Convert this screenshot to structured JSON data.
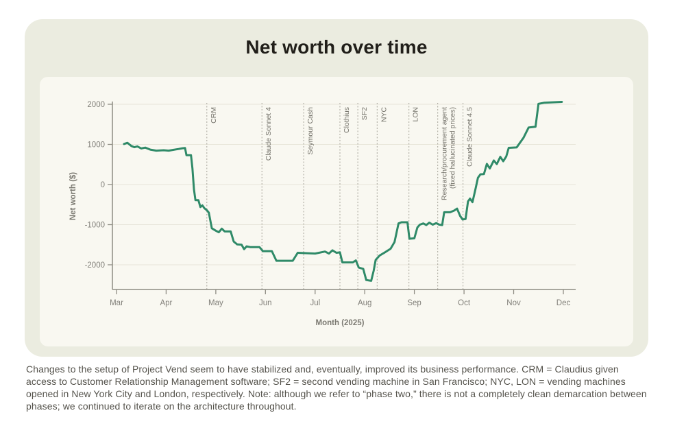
{
  "title": "Net worth over time",
  "caption": "Changes to the setup of Project Vend seem to have stabilized and, eventually, improved its business performance. CRM = Claudius given access to Customer Relationship Management software; SF2 = second vending machine in San Francisco; NYC, LON = vending machines opened in New York City and London, respectively. Note: although we refer to “phase two,” there is not a completely clean demarcation between phases; we continued to iterate on the architecture throughout.",
  "colors": {
    "page_bg": "#ffffff",
    "figure_card_bg": "#ebece0",
    "chart_card_bg": "#f9f8f1",
    "title_text": "#211f1a",
    "line": "#2f8a68",
    "grid": "#e7e5d9",
    "spine": "#8e8c83",
    "tick_text": "#82807a",
    "axis_title_text": "#7b7971",
    "annotation_line": "#a6a399",
    "annotation_text": "#75736b",
    "caption_text": "#55534c"
  },
  "chart_data": {
    "type": "line",
    "title": "Net worth over time",
    "xlabel": "Month (2025)",
    "ylabel": "Net worth ($)",
    "x_unit": "months_since_march_decimal",
    "x_tick_labels": [
      "Mar",
      "Apr",
      "May",
      "Jun",
      "Jul",
      "Aug",
      "Sep",
      "Oct",
      "Nov",
      "Dec"
    ],
    "yticks": [
      2000,
      1000,
      0,
      -1000,
      -2000
    ],
    "ylim": [
      -2615,
      2240
    ],
    "grid": "horizontal",
    "legend": "none",
    "series": [
      {
        "name": "Net worth ($)",
        "color": "#2f8a68",
        "points": [
          [
            0.15,
            1010
          ],
          [
            0.22,
            1040
          ],
          [
            0.3,
            960
          ],
          [
            0.36,
            930
          ],
          [
            0.42,
            950
          ],
          [
            0.5,
            900
          ],
          [
            0.58,
            920
          ],
          [
            0.68,
            870
          ],
          [
            0.8,
            845
          ],
          [
            0.95,
            855
          ],
          [
            1.05,
            845
          ],
          [
            1.15,
            865
          ],
          [
            1.25,
            885
          ],
          [
            1.33,
            905
          ],
          [
            1.38,
            910
          ],
          [
            1.41,
            730
          ],
          [
            1.5,
            730
          ],
          [
            1.53,
            400
          ],
          [
            1.56,
            -120
          ],
          [
            1.59,
            -390
          ],
          [
            1.65,
            -390
          ],
          [
            1.69,
            -560
          ],
          [
            1.73,
            -520
          ],
          [
            1.77,
            -590
          ],
          [
            1.82,
            -640
          ],
          [
            1.86,
            -700
          ],
          [
            1.92,
            -1090
          ],
          [
            2.0,
            -1150
          ],
          [
            2.06,
            -1190
          ],
          [
            2.12,
            -1100
          ],
          [
            2.18,
            -1170
          ],
          [
            2.3,
            -1170
          ],
          [
            2.36,
            -1420
          ],
          [
            2.43,
            -1490
          ],
          [
            2.52,
            -1500
          ],
          [
            2.57,
            -1610
          ],
          [
            2.62,
            -1540
          ],
          [
            2.7,
            -1560
          ],
          [
            2.88,
            -1560
          ],
          [
            2.95,
            -1660
          ],
          [
            3.13,
            -1660
          ],
          [
            3.22,
            -1900
          ],
          [
            3.55,
            -1900
          ],
          [
            3.65,
            -1700
          ],
          [
            3.8,
            -1710
          ],
          [
            4.0,
            -1720
          ],
          [
            4.2,
            -1670
          ],
          [
            4.28,
            -1720
          ],
          [
            4.35,
            -1640
          ],
          [
            4.43,
            -1700
          ],
          [
            4.5,
            -1690
          ],
          [
            4.55,
            -1940
          ],
          [
            4.76,
            -1940
          ],
          [
            4.82,
            -1890
          ],
          [
            4.88,
            -2070
          ],
          [
            4.97,
            -2100
          ],
          [
            5.03,
            -2380
          ],
          [
            5.13,
            -2400
          ],
          [
            5.18,
            -2150
          ],
          [
            5.22,
            -1880
          ],
          [
            5.3,
            -1770
          ],
          [
            5.42,
            -1680
          ],
          [
            5.52,
            -1600
          ],
          [
            5.6,
            -1430
          ],
          [
            5.68,
            -970
          ],
          [
            5.74,
            -940
          ],
          [
            5.86,
            -940
          ],
          [
            5.9,
            -1350
          ],
          [
            6.0,
            -1340
          ],
          [
            6.06,
            -1070
          ],
          [
            6.11,
            -1000
          ],
          [
            6.18,
            -970
          ],
          [
            6.24,
            -1010
          ],
          [
            6.3,
            -950
          ],
          [
            6.37,
            -1000
          ],
          [
            6.44,
            -960
          ],
          [
            6.5,
            -1000
          ],
          [
            6.56,
            -1010
          ],
          [
            6.6,
            -690
          ],
          [
            6.72,
            -690
          ],
          [
            6.8,
            -650
          ],
          [
            6.86,
            -600
          ],
          [
            6.92,
            -780
          ],
          [
            6.97,
            -870
          ],
          [
            7.03,
            -860
          ],
          [
            7.08,
            -420
          ],
          [
            7.12,
            -350
          ],
          [
            7.17,
            -440
          ],
          [
            7.23,
            -120
          ],
          [
            7.28,
            170
          ],
          [
            7.33,
            255
          ],
          [
            7.4,
            260
          ],
          [
            7.46,
            515
          ],
          [
            7.52,
            400
          ],
          [
            7.6,
            600
          ],
          [
            7.66,
            510
          ],
          [
            7.73,
            690
          ],
          [
            7.79,
            580
          ],
          [
            7.85,
            700
          ],
          [
            7.9,
            915
          ],
          [
            8.06,
            925
          ],
          [
            8.2,
            1170
          ],
          [
            8.3,
            1420
          ],
          [
            8.44,
            1440
          ],
          [
            8.5,
            2010
          ],
          [
            8.62,
            2040
          ],
          [
            8.97,
            2060
          ]
        ]
      }
    ],
    "annotations": [
      {
        "label": "CRM",
        "month": 1.82
      },
      {
        "label": "Claude Sonnet 4",
        "month": 2.93
      },
      {
        "label": "Seymour Cash",
        "month": 3.77
      },
      {
        "label": "Clothius",
        "month": 4.5
      },
      {
        "label": "SF2",
        "month": 4.86
      },
      {
        "label": "NYC",
        "month": 5.25
      },
      {
        "label": "LON",
        "month": 5.89
      },
      {
        "label": "Research/procurement agent\n(fixed hallucinated prices)",
        "month": 6.47
      },
      {
        "label": "Claude Sonnet 4.5",
        "month": 6.98
      }
    ]
  }
}
